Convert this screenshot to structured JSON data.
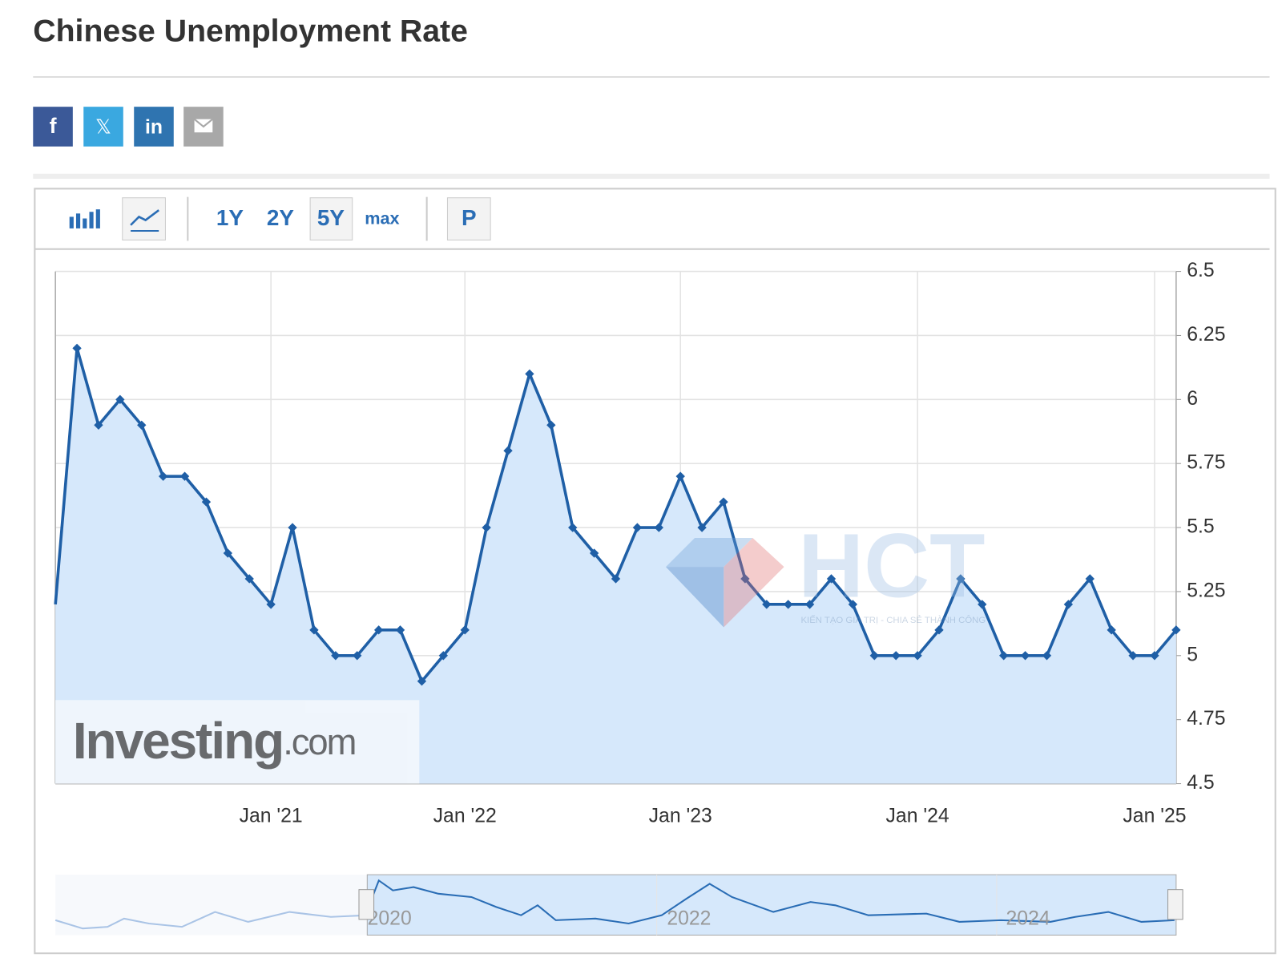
{
  "header": {
    "title": "Chinese Unemployment Rate"
  },
  "share_buttons": [
    "f",
    "𝕏",
    "in"
  ],
  "toolbar": {
    "ranges": [
      "1Y",
      "2Y",
      "5Y",
      "max"
    ],
    "print": "P"
  },
  "watermarks": {
    "investing": "Investing",
    "investing_suffix": ".com",
    "hct": "HCT",
    "hct_tagline": "KIẾN TẠO GIÁ TRỊ - CHIA SẺ THÀNH CÔNG"
  },
  "navigator": {
    "labels": [
      "2020",
      "2022",
      "2024"
    ]
  },
  "chart_data": {
    "type": "line",
    "title": "Chinese Unemployment Rate",
    "categories": [
      null,
      null,
      null,
      null,
      null,
      null,
      null,
      null,
      null,
      null,
      "Jan '21",
      null,
      null,
      null,
      null,
      null,
      null,
      null,
      null,
      "Jan '22",
      null,
      null,
      null,
      null,
      null,
      null,
      null,
      null,
      null,
      "Jan '23",
      null,
      null,
      null,
      null,
      null,
      null,
      null,
      null,
      null,
      null,
      "Jan '24",
      null,
      null,
      null,
      null,
      null,
      null,
      null,
      null,
      null,
      null,
      "Jan '25",
      null
    ],
    "values": [
      5.2,
      6.2,
      5.9,
      6.0,
      5.9,
      5.7,
      5.7,
      5.6,
      5.4,
      5.3,
      5.2,
      5.5,
      5.1,
      5.0,
      5.0,
      5.1,
      5.1,
      4.9,
      5.0,
      5.1,
      5.5,
      5.8,
      6.1,
      5.9,
      5.5,
      5.4,
      5.3,
      5.5,
      5.5,
      5.7,
      5.5,
      5.6,
      5.3,
      5.2,
      5.2,
      5.2,
      5.3,
      5.2,
      5.0,
      5.0,
      5.0,
      5.1,
      5.3,
      5.2,
      5.0,
      5.0,
      5.0,
      5.2,
      5.3,
      5.1,
      5.0,
      5.0,
      5.1
    ],
    "color": "#1f5fa6",
    "area_color": "#d6e8fb",
    "ylim": [
      4.5,
      6.5
    ],
    "yticks": [
      4.5,
      4.75,
      5,
      5.25,
      5.5,
      5.75,
      6,
      6.25,
      6.5
    ],
    "grid": true,
    "y_axis_side": "right"
  }
}
